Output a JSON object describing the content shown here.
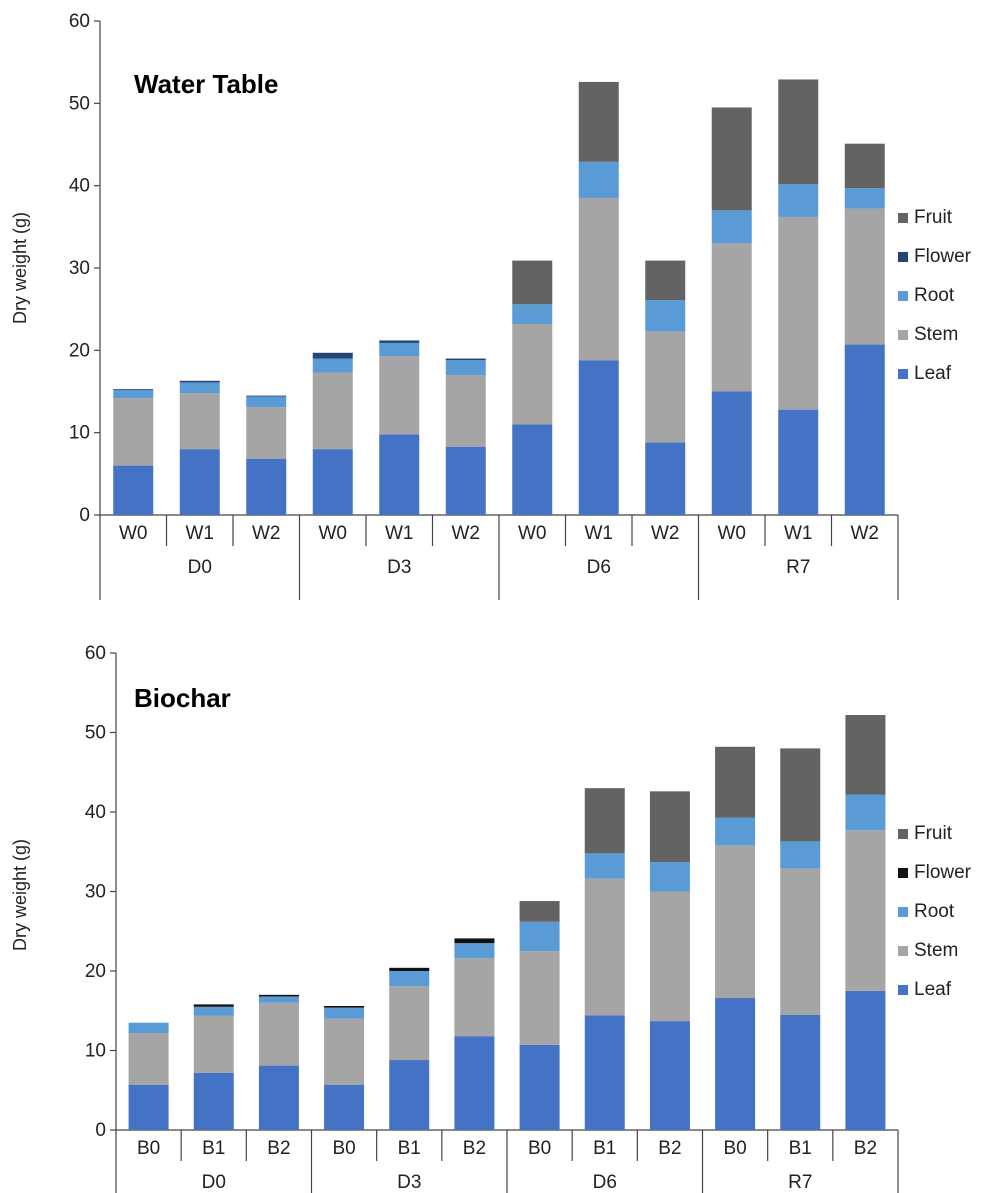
{
  "components": [
    "Leaf",
    "Stem",
    "Root",
    "Flower",
    "Fruit"
  ],
  "colors": {
    "Leaf": "#4472c4",
    "Stem": "#a5a5a5",
    "Root": "#5b9bd5",
    "Fruit": "#636363",
    "Flower_top": "#264478",
    "Flower_bottom": "#111111"
  },
  "chart_data": [
    {
      "type": "bar",
      "stacked": true,
      "title": "Water Table",
      "ylabel": "Dry weight (g)",
      "ylim": [
        0,
        60
      ],
      "yticks": [
        0,
        10,
        20,
        30,
        40,
        50,
        60
      ],
      "groups": [
        "D0",
        "D3",
        "D6",
        "R7"
      ],
      "categories": [
        "W0",
        "W1",
        "W2",
        "W0",
        "W1",
        "W2",
        "W0",
        "W1",
        "W2",
        "W0",
        "W1",
        "W2"
      ],
      "legend": [
        "Fruit",
        "Flower",
        "Root",
        "Stem",
        "Leaf"
      ],
      "legend_position": "right",
      "series": [
        {
          "name": "Leaf",
          "values": [
            6.0,
            8.0,
            6.8,
            8.0,
            9.8,
            8.3,
            11.0,
            18.8,
            8.8,
            15.0,
            12.8,
            20.7
          ]
        },
        {
          "name": "Stem",
          "values": [
            8.2,
            6.8,
            6.3,
            9.3,
            9.5,
            8.7,
            12.2,
            19.7,
            13.5,
            18.0,
            23.4,
            16.5
          ]
        },
        {
          "name": "Root",
          "values": [
            1.0,
            1.3,
            1.3,
            1.7,
            1.6,
            1.8,
            2.4,
            4.4,
            3.8,
            4.0,
            4.0,
            2.5
          ]
        },
        {
          "name": "Flower",
          "values": [
            0.1,
            0.2,
            0.1,
            0.7,
            0.3,
            0.2,
            0,
            0,
            0,
            0,
            0,
            0
          ]
        },
        {
          "name": "Fruit",
          "values": [
            0,
            0,
            0,
            0,
            0,
            0,
            5.3,
            9.7,
            4.8,
            12.5,
            12.7,
            5.4
          ]
        }
      ]
    },
    {
      "type": "bar",
      "stacked": true,
      "title": "Biochar",
      "ylabel": "Dry weight (g)",
      "ylim": [
        0,
        60
      ],
      "yticks": [
        0,
        10,
        20,
        30,
        40,
        50,
        60
      ],
      "groups": [
        "D0",
        "D3",
        "D6",
        "R7"
      ],
      "categories": [
        "B0",
        "B1",
        "B2",
        "B0",
        "B1",
        "B2",
        "B0",
        "B1",
        "B2",
        "B0",
        "B1",
        "B2"
      ],
      "legend": [
        "Fruit",
        "Flower",
        "Root",
        "Stem",
        "Leaf"
      ],
      "legend_position": "right",
      "series": [
        {
          "name": "Leaf",
          "values": [
            5.7,
            7.2,
            8.1,
            5.7,
            8.8,
            11.8,
            10.7,
            14.4,
            13.7,
            16.6,
            14.5,
            17.5
          ]
        },
        {
          "name": "Stem",
          "values": [
            6.5,
            7.2,
            7.9,
            8.3,
            9.3,
            9.8,
            11.8,
            17.2,
            16.3,
            19.2,
            18.4,
            20.2
          ]
        },
        {
          "name": "Root",
          "values": [
            1.3,
            1.1,
            0.8,
            1.4,
            1.9,
            1.9,
            3.7,
            3.2,
            3.7,
            3.5,
            3.4,
            4.5
          ]
        },
        {
          "name": "Flower",
          "values": [
            0,
            0.3,
            0.2,
            0.2,
            0.4,
            0.6,
            0,
            0,
            0,
            0,
            0,
            0
          ]
        },
        {
          "name": "Fruit",
          "values": [
            0,
            0,
            0,
            0,
            0,
            0,
            2.6,
            8.2,
            8.9,
            8.9,
            11.7,
            10.0
          ]
        }
      ]
    }
  ]
}
